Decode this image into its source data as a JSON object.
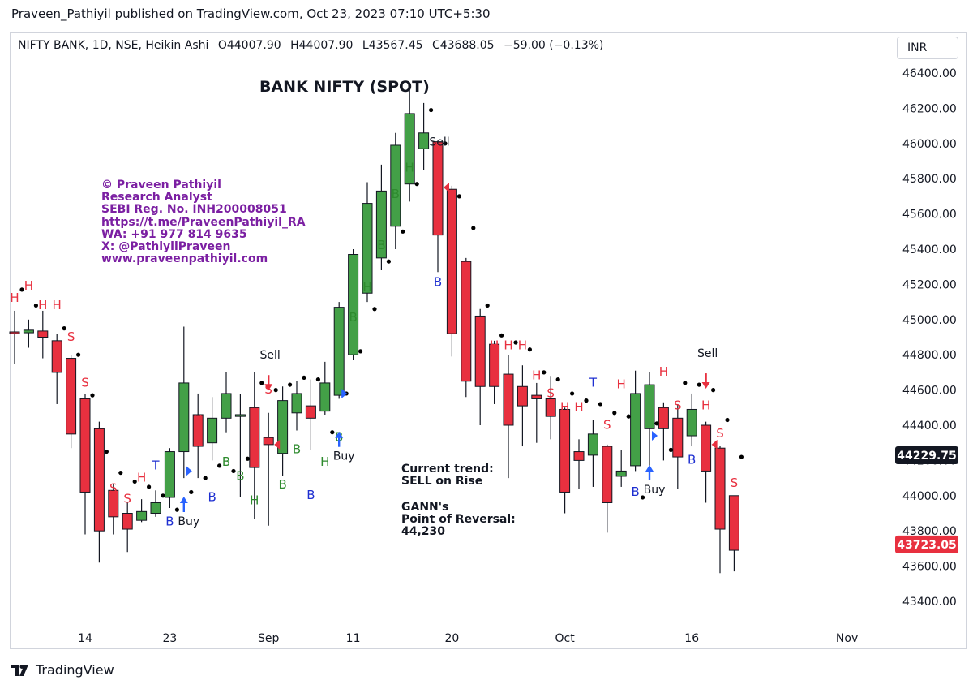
{
  "header": {
    "published_line": "Praveen_Pathiyil published on TradingView.com, Oct 23, 2023 07:10 UTC+5:30"
  },
  "legend": {
    "symbol": "NIFTY BANK, 1D, NSE, Heikin Ashi",
    "open": "O44007.90",
    "high": "H44007.90",
    "low": "L43567.45",
    "close": "C43688.05",
    "change": "−59.00 (−0.13%)"
  },
  "currency_button": "INR",
  "chart_title": "BANK NIFTY (SPOT)",
  "credit": [
    "© Praveen Pathiyil",
    "Research Analyst",
    "SEBI Reg. No. INH200008051",
    "https://t.me/PraveenPathiyil_RA",
    "WA: +91 977 814 9635",
    "X: @PathiyilPraveen",
    "www.praveenpathiyil.com"
  ],
  "annotation": {
    "trend": "Current trend:\nSELL on Rise",
    "gann": "GANN's\nPoint of Reversal:\n44,230"
  },
  "footer": {
    "brand": "TradingView"
  },
  "colors": {
    "up": "#43a047",
    "down": "#e8303f",
    "label_red": "#e8303f",
    "label_green": "#2e8b2e",
    "label_blue": "#1e2fd1",
    "arrow_blue": "#2962ff",
    "credit": "#7b1fa2"
  },
  "chart_data": {
    "type": "candlestick",
    "style": "Heikin Ashi",
    "ylim": [
      43400,
      46400
    ],
    "y_ticks": [
      "46400.00",
      "46200.00",
      "46000.00",
      "45800.00",
      "45600.00",
      "45400.00",
      "45200.00",
      "45000.00",
      "44800.00",
      "44600.00",
      "44400.00",
      "44200.00",
      "44000.00",
      "43800.00",
      "43600.00",
      "43400.00"
    ],
    "x_ticks": [
      {
        "label": "14",
        "idx": 5
      },
      {
        "label": "23",
        "idx": 11
      },
      {
        "label": "Sep",
        "idx": 18
      },
      {
        "label": "11",
        "idx": 24
      },
      {
        "label": "20",
        "idx": 31
      },
      {
        "label": "Oct",
        "idx": 39
      },
      {
        "label": "16",
        "idx": 48
      },
      {
        "label": "Nov",
        "idx": 59
      }
    ],
    "price_labels": [
      {
        "value": "44229.75",
        "bg": "#131722",
        "y": 44229.75
      },
      {
        "value": "43723.05",
        "bg": "#e8303f",
        "y": 43723.05
      }
    ],
    "candles": [
      {
        "o": 44930,
        "c": 44920,
        "h": 45050,
        "l": 44750
      },
      {
        "o": 44925,
        "c": 44940,
        "h": 45000,
        "l": 44840
      },
      {
        "o": 44935,
        "c": 44900,
        "h": 45050,
        "l": 44780
      },
      {
        "o": 44880,
        "c": 44700,
        "h": 44920,
        "l": 44520
      },
      {
        "o": 44780,
        "c": 44350,
        "h": 44800,
        "l": 44270
      },
      {
        "o": 44550,
        "c": 44020,
        "h": 44580,
        "l": 43780
      },
      {
        "o": 44380,
        "c": 43800,
        "h": 44420,
        "l": 43620
      },
      {
        "o": 44030,
        "c": 43880,
        "h": 44070,
        "l": 43780
      },
      {
        "o": 43900,
        "c": 43810,
        "h": 43960,
        "l": 43680
      },
      {
        "o": 43860,
        "c": 43910,
        "h": 43980,
        "l": 43850
      },
      {
        "o": 43900,
        "c": 43960,
        "h": 44030,
        "l": 43880
      },
      {
        "o": 43990,
        "c": 44250,
        "h": 44270,
        "l": 43930
      },
      {
        "o": 44250,
        "c": 44640,
        "h": 44960,
        "l": 44100
      },
      {
        "o": 44460,
        "c": 44280,
        "h": 44580,
        "l": 44100
      },
      {
        "o": 44300,
        "c": 44440,
        "h": 44560,
        "l": 44200
      },
      {
        "o": 44440,
        "c": 44580,
        "h": 44700,
        "l": 44360
      },
      {
        "o": 44450,
        "c": 44460,
        "h": 44580,
        "l": 43990
      },
      {
        "o": 44500,
        "c": 44160,
        "h": 44700,
        "l": 43870
      },
      {
        "o": 44330,
        "c": 44290,
        "h": 44470,
        "l": 43830
      },
      {
        "o": 44240,
        "c": 44540,
        "h": 44620,
        "l": 44110
      },
      {
        "o": 44470,
        "c": 44580,
        "h": 44650,
        "l": 44370
      },
      {
        "o": 44510,
        "c": 44440,
        "h": 44660,
        "l": 44260
      },
      {
        "o": 44480,
        "c": 44640,
        "h": 44760,
        "l": 44460
      },
      {
        "o": 44570,
        "c": 45070,
        "h": 45100,
        "l": 44550
      },
      {
        "o": 44800,
        "c": 45370,
        "h": 45400,
        "l": 44770
      },
      {
        "o": 45150,
        "c": 45660,
        "h": 45780,
        "l": 45100
      },
      {
        "o": 45350,
        "c": 45730,
        "h": 45880,
        "l": 45280
      },
      {
        "o": 45530,
        "c": 45990,
        "h": 46060,
        "l": 45400
      },
      {
        "o": 45770,
        "c": 46170,
        "h": 46330,
        "l": 45670
      },
      {
        "o": 45970,
        "c": 46060,
        "h": 46230,
        "l": 45850
      },
      {
        "o": 46010,
        "c": 45480,
        "h": 46010,
        "l": 45270
      },
      {
        "o": 45740,
        "c": 44920,
        "h": 45760,
        "l": 44790
      },
      {
        "o": 45330,
        "c": 44650,
        "h": 45350,
        "l": 44560
      },
      {
        "o": 45020,
        "c": 44620,
        "h": 45060,
        "l": 44400
      },
      {
        "o": 44860,
        "c": 44620,
        "h": 44880,
        "l": 44520
      },
      {
        "o": 44690,
        "c": 44400,
        "h": 44800,
        "l": 44100
      },
      {
        "o": 44620,
        "c": 44510,
        "h": 44740,
        "l": 44280
      },
      {
        "o": 44570,
        "c": 44550,
        "h": 44640,
        "l": 44300
      },
      {
        "o": 44550,
        "c": 44450,
        "h": 44680,
        "l": 44320
      },
      {
        "o": 44490,
        "c": 44020,
        "h": 44500,
        "l": 43900
      },
      {
        "o": 44250,
        "c": 44200,
        "h": 44320,
        "l": 44040
      },
      {
        "o": 44230,
        "c": 44350,
        "h": 44430,
        "l": 44050
      },
      {
        "o": 44280,
        "c": 43960,
        "h": 44290,
        "l": 43790
      },
      {
        "o": 44110,
        "c": 44140,
        "h": 44260,
        "l": 44050
      },
      {
        "o": 44170,
        "c": 44580,
        "h": 44710,
        "l": 44140
      },
      {
        "o": 44380,
        "c": 44630,
        "h": 44700,
        "l": 44150
      },
      {
        "o": 44500,
        "c": 44380,
        "h": 44530,
        "l": 44200
      },
      {
        "o": 44440,
        "c": 44220,
        "h": 44520,
        "l": 44040
      },
      {
        "o": 44340,
        "c": 44490,
        "h": 44580,
        "l": 44280
      },
      {
        "o": 44400,
        "c": 44140,
        "h": 44420,
        "l": 43960
      },
      {
        "o": 44270,
        "c": 43810,
        "h": 44280,
        "l": 43560
      },
      {
        "o": 44000,
        "c": 43690,
        "h": 44000,
        "l": 43570
      }
    ],
    "markers": [
      {
        "t": "H",
        "idx": 0,
        "y": 45100,
        "c": "red"
      },
      {
        "t": "H",
        "idx": 1,
        "y": 45170,
        "c": "red"
      },
      {
        "t": "H",
        "idx": 2,
        "y": 45060,
        "c": "red"
      },
      {
        "t": "H",
        "idx": 3,
        "y": 45060,
        "c": "red"
      },
      {
        "t": "S",
        "idx": 4,
        "y": 44880,
        "c": "red"
      },
      {
        "t": "S",
        "idx": 5,
        "y": 44620,
        "c": "red"
      },
      {
        "t": "S",
        "idx": 6,
        "y": 44310,
        "c": "red"
      },
      {
        "t": "S",
        "idx": 7,
        "y": 44020,
        "c": "red"
      },
      {
        "t": "S",
        "idx": 8,
        "y": 43960,
        "c": "red"
      },
      {
        "t": "H",
        "idx": 9,
        "y": 44080,
        "c": "red"
      },
      {
        "t": "T",
        "idx": 10,
        "y": 44150,
        "c": "blue"
      },
      {
        "t": "B",
        "idx": 11,
        "y": 43830,
        "c": "blue"
      },
      {
        "t": "H",
        "idx": 13,
        "y": 44410,
        "c": "red"
      },
      {
        "t": "B",
        "idx": 14,
        "y": 43970,
        "c": "blue"
      },
      {
        "t": "B",
        "idx": 15,
        "y": 44170,
        "c": "green"
      },
      {
        "t": "B",
        "idx": 16,
        "y": 44090,
        "c": "green"
      },
      {
        "t": "H",
        "idx": 17,
        "y": 43950,
        "c": "green"
      },
      {
        "t": "S",
        "idx": 18,
        "y": 44580,
        "c": "red"
      },
      {
        "t": "B",
        "idx": 19,
        "y": 44040,
        "c": "green"
      },
      {
        "t": "B",
        "idx": 20,
        "y": 44240,
        "c": "green"
      },
      {
        "t": "B",
        "idx": 21,
        "y": 43980,
        "c": "blue"
      },
      {
        "t": "H",
        "idx": 22,
        "y": 44170,
        "c": "green"
      },
      {
        "t": "B",
        "idx": 23,
        "y": 44310,
        "c": "green"
      },
      {
        "t": "B",
        "idx": 24,
        "y": 44990,
        "c": "green"
      },
      {
        "t": "H",
        "idx": 25,
        "y": 45160,
        "c": "green"
      },
      {
        "t": "B",
        "idx": 26,
        "y": 45400,
        "c": "green"
      },
      {
        "t": "B",
        "idx": 27,
        "y": 45690,
        "c": "green"
      },
      {
        "t": "H",
        "idx": 28,
        "y": 45840,
        "c": "green"
      },
      {
        "t": "B",
        "idx": 30,
        "y": 45190,
        "c": "blue"
      },
      {
        "t": "S",
        "idx": 31,
        "y": 45400,
        "c": "red"
      },
      {
        "t": "S",
        "idx": 32,
        "y": 45110,
        "c": "red"
      },
      {
        "t": "S",
        "idx": 33,
        "y": 44960,
        "c": "red"
      },
      {
        "t": "H",
        "idx": 34,
        "y": 44830,
        "c": "red"
      },
      {
        "t": "H",
        "idx": 35,
        "y": 44830,
        "c": "red"
      },
      {
        "t": "H",
        "idx": 36,
        "y": 44830,
        "c": "red"
      },
      {
        "t": "H",
        "idx": 37,
        "y": 44660,
        "c": "red"
      },
      {
        "t": "S",
        "idx": 38,
        "y": 44560,
        "c": "red"
      },
      {
        "t": "H",
        "idx": 39,
        "y": 44480,
        "c": "red"
      },
      {
        "t": "H",
        "idx": 40,
        "y": 44480,
        "c": "red"
      },
      {
        "t": "T",
        "idx": 41,
        "y": 44620,
        "c": "blue"
      },
      {
        "t": "S",
        "idx": 42,
        "y": 44380,
        "c": "red"
      },
      {
        "t": "H",
        "idx": 43,
        "y": 44610,
        "c": "red"
      },
      {
        "t": "B",
        "idx": 44,
        "y": 44000,
        "c": "blue"
      },
      {
        "t": "H",
        "idx": 46,
        "y": 44680,
        "c": "red"
      },
      {
        "t": "S",
        "idx": 47,
        "y": 44490,
        "c": "red"
      },
      {
        "t": "B",
        "idx": 48,
        "y": 44180,
        "c": "blue"
      },
      {
        "t": "H",
        "idx": 49,
        "y": 44490,
        "c": "red"
      },
      {
        "t": "S",
        "idx": 50,
        "y": 44330,
        "c": "red"
      },
      {
        "t": "S",
        "idx": 51,
        "y": 44050,
        "c": "red"
      }
    ],
    "signals": [
      {
        "text": "Sell",
        "idx": 18,
        "dir": "down",
        "y": 44740
      },
      {
        "text": "Sell",
        "idx": 30,
        "dir": "down",
        "y": 45950
      },
      {
        "text": "Sell",
        "idx": 49,
        "dir": "down",
        "y": 44750
      },
      {
        "text": "Buy",
        "idx": 12,
        "dir": "up",
        "y": 43870
      },
      {
        "text": "Buy",
        "idx": 23,
        "dir": "up",
        "y": 44240
      },
      {
        "text": "Buy",
        "idx": 45,
        "dir": "up",
        "y": 44050
      }
    ],
    "dots": [
      {
        "idx": 0,
        "y": 45170
      },
      {
        "idx": 1,
        "y": 45080
      },
      {
        "idx": 3,
        "y": 44950
      },
      {
        "idx": 4,
        "y": 44800
      },
      {
        "idx": 5,
        "y": 44570
      },
      {
        "idx": 6,
        "y": 44250
      },
      {
        "idx": 7,
        "y": 44130
      },
      {
        "idx": 8,
        "y": 44080
      },
      {
        "idx": 9,
        "y": 44050
      },
      {
        "idx": 10,
        "y": 44000
      },
      {
        "idx": 11,
        "y": 43920
      },
      {
        "idx": 12,
        "y": 44020
      },
      {
        "idx": 13,
        "y": 44100
      },
      {
        "idx": 14,
        "y": 44170
      },
      {
        "idx": 15,
        "y": 44140
      },
      {
        "idx": 16,
        "y": 44210
      },
      {
        "idx": 17,
        "y": 44640
      },
      {
        "idx": 18,
        "y": 44600
      },
      {
        "idx": 19,
        "y": 44630
      },
      {
        "idx": 20,
        "y": 44670
      },
      {
        "idx": 21,
        "y": 44660
      },
      {
        "idx": 22,
        "y": 44360
      },
      {
        "idx": 23,
        "y": 44580
      },
      {
        "idx": 24,
        "y": 44820
      },
      {
        "idx": 25,
        "y": 45060
      },
      {
        "idx": 26,
        "y": 45330
      },
      {
        "idx": 27,
        "y": 45500
      },
      {
        "idx": 28,
        "y": 45770
      },
      {
        "idx": 29,
        "y": 46190
      },
      {
        "idx": 30,
        "y": 46000
      },
      {
        "idx": 31,
        "y": 45700
      },
      {
        "idx": 32,
        "y": 45520
      },
      {
        "idx": 33,
        "y": 45080
      },
      {
        "idx": 34,
        "y": 44910
      },
      {
        "idx": 35,
        "y": 44870
      },
      {
        "idx": 36,
        "y": 44830
      },
      {
        "idx": 37,
        "y": 44700
      },
      {
        "idx": 38,
        "y": 44660
      },
      {
        "idx": 39,
        "y": 44580
      },
      {
        "idx": 40,
        "y": 44540
      },
      {
        "idx": 41,
        "y": 44520
      },
      {
        "idx": 42,
        "y": 44470
      },
      {
        "idx": 43,
        "y": 44450
      },
      {
        "idx": 44,
        "y": 43990
      },
      {
        "idx": 45,
        "y": 44410
      },
      {
        "idx": 46,
        "y": 44260
      },
      {
        "idx": 47,
        "y": 44640
      },
      {
        "idx": 48,
        "y": 44630
      },
      {
        "idx": 49,
        "y": 44600
      },
      {
        "idx": 50,
        "y": 44430
      },
      {
        "idx": 51,
        "y": 44220
      }
    ],
    "reversal_triangles": [
      {
        "idx": 12,
        "y": 44140,
        "dir": "right",
        "c": "blue"
      },
      {
        "idx": 18,
        "y": 44290,
        "dir": "left",
        "c": "red"
      },
      {
        "idx": 23,
        "y": 44580,
        "dir": "right",
        "c": "blue"
      },
      {
        "idx": 30,
        "y": 45750,
        "dir": "left",
        "c": "red"
      },
      {
        "idx": 45,
        "y": 44340,
        "dir": "right",
        "c": "blue"
      },
      {
        "idx": 49,
        "y": 44290,
        "dir": "left",
        "c": "red"
      }
    ]
  }
}
